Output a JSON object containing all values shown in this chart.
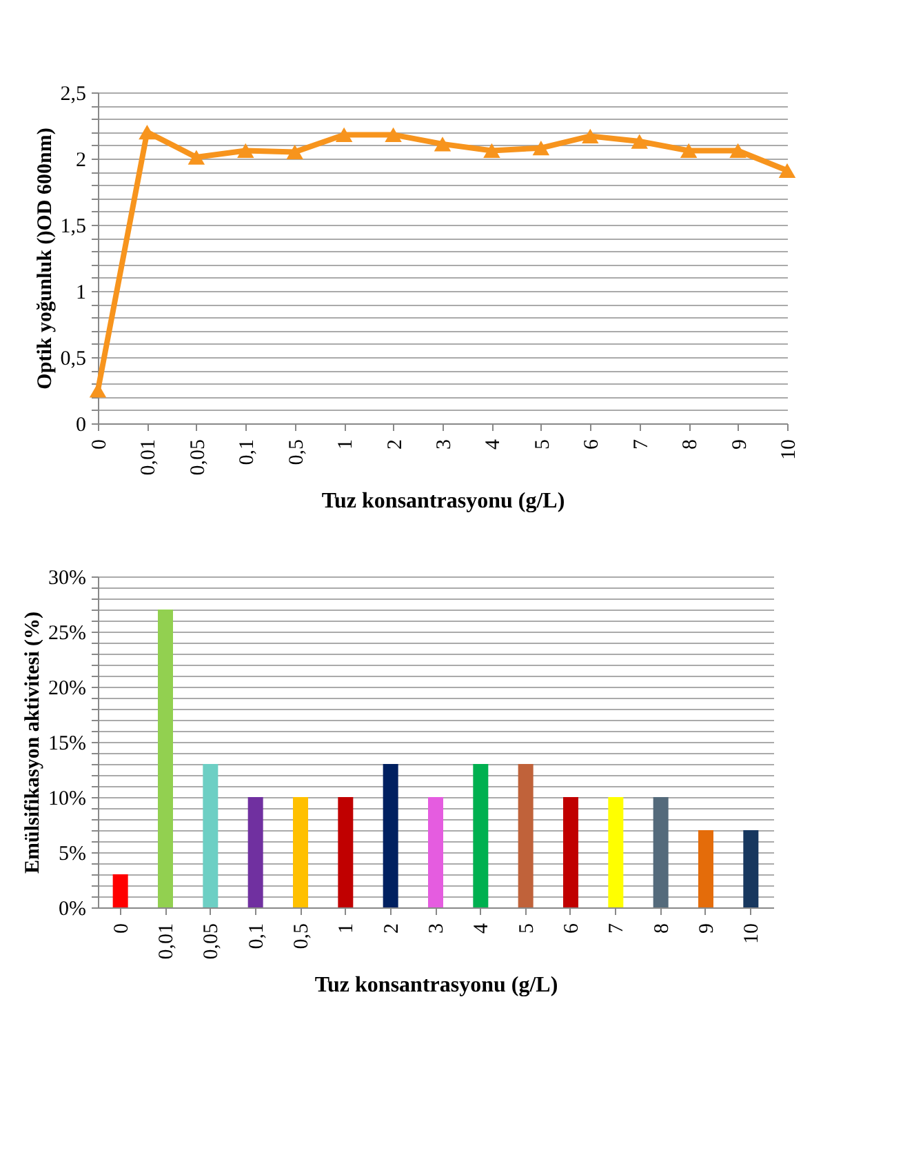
{
  "chart_data": [
    {
      "type": "line",
      "xlabel": "Tuz konsantrasyonu (g/L)",
      "ylabel": "Optik yoğunluk ()OD 600nm)",
      "categories": [
        "0",
        "0,01",
        "0,05",
        "0,1",
        "0,5",
        "1",
        "2",
        "3",
        "4",
        "5",
        "6",
        "7",
        "8",
        "9",
        "10"
      ],
      "series": [
        {
          "color": "#f7941d",
          "values": [
            0.25,
            2.2,
            2.01,
            2.06,
            2.05,
            2.18,
            2.18,
            2.11,
            2.06,
            2.08,
            2.17,
            2.13,
            2.06,
            2.06,
            1.91
          ]
        }
      ],
      "ylim": [
        0,
        2.5
      ],
      "yticks": [
        0,
        {
          "value": 0.1,
          "label": null
        },
        {
          "value": 0.2,
          "label": null
        },
        {
          "value": 0.3,
          "label": null
        },
        {
          "value": 0.4,
          "label": null
        },
        {
          "value": 0.5,
          "label": "0,5"
        },
        {
          "value": 0.6,
          "label": null
        },
        {
          "value": 0.7,
          "label": null
        },
        {
          "value": 0.8,
          "label": null
        },
        {
          "value": 0.9,
          "label": null
        },
        1,
        {
          "value": 1.1,
          "label": null
        },
        {
          "value": 1.2,
          "label": null
        },
        {
          "value": 1.3,
          "label": null
        },
        {
          "value": 1.4,
          "label": null
        },
        {
          "value": 1.5,
          "label": "1,5"
        },
        {
          "value": 1.6,
          "label": null
        },
        {
          "value": 1.7,
          "label": null
        },
        {
          "value": 1.8,
          "label": null
        },
        {
          "value": 1.9,
          "label": null
        },
        2,
        {
          "value": 2.1,
          "label": null
        },
        {
          "value": 2.2,
          "label": null
        },
        {
          "value": 2.3,
          "label": null
        },
        {
          "value": 2.4,
          "label": null
        },
        {
          "value": 2.5,
          "label": "2,5"
        }
      ],
      "grid": "y",
      "marker": "triangle",
      "line_style": "solid"
    },
    {
      "type": "bar",
      "xlabel": "Tuz konsantrasyonu (g/L)",
      "ylabel": "Emülsifikasyon aktivitesi (%)",
      "categories": [
        "0",
        "0,01",
        "0,05",
        "0,1",
        "0,5",
        "1",
        "2",
        "3",
        "4",
        "5",
        "6",
        "7",
        "8",
        "9",
        "10"
      ],
      "values": [
        3,
        27,
        13,
        10,
        10,
        10,
        13,
        10,
        13,
        13,
        10,
        10,
        10,
        7,
        7
      ],
      "colors": [
        "#ff0000",
        "#92d050",
        "#6dcfc4",
        "#7030a0",
        "#ffc000",
        "#c00000",
        "#002060",
        "#e55ce0",
        "#00b050",
        "#c0623a",
        "#c00000",
        "#ffff00",
        "#546a7b",
        "#e46c0a",
        "#17375e"
      ],
      "ylim": [
        0,
        30
      ],
      "yticks": [
        {
          "value": 0,
          "label": "0%"
        },
        {
          "value": 1,
          "label": null
        },
        {
          "value": 2,
          "label": null
        },
        {
          "value": 3,
          "label": null
        },
        {
          "value": 4,
          "label": null
        },
        {
          "value": 5,
          "label": "5%"
        },
        {
          "value": 6,
          "label": null
        },
        {
          "value": 7,
          "label": null
        },
        {
          "value": 8,
          "label": null
        },
        {
          "value": 9,
          "label": null
        },
        {
          "value": 10,
          "label": "10%"
        },
        {
          "value": 11,
          "label": null
        },
        {
          "value": 12,
          "label": null
        },
        {
          "value": 13,
          "label": null
        },
        {
          "value": 14,
          "label": null
        },
        {
          "value": 15,
          "label": "15%"
        },
        {
          "value": 16,
          "label": null
        },
        {
          "value": 17,
          "label": null
        },
        {
          "value": 18,
          "label": null
        },
        {
          "value": 19,
          "label": null
        },
        {
          "value": 20,
          "label": "20%"
        },
        {
          "value": 21,
          "label": null
        },
        {
          "value": 22,
          "label": null
        },
        {
          "value": 23,
          "label": null
        },
        {
          "value": 24,
          "label": null
        },
        {
          "value": 25,
          "label": "25%"
        },
        {
          "value": 26,
          "label": null
        },
        {
          "value": 27,
          "label": null
        },
        {
          "value": 28,
          "label": null
        },
        {
          "value": 29,
          "label": null
        },
        {
          "value": 30,
          "label": "30%"
        }
      ],
      "grid": "y"
    }
  ]
}
